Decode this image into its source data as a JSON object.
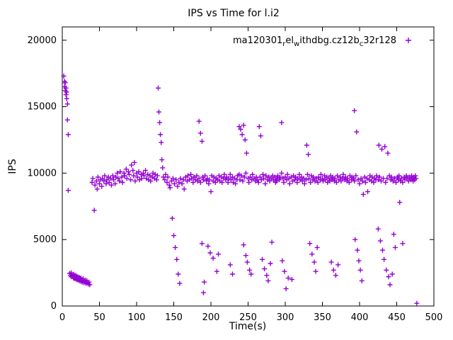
{
  "chart_data": {
    "type": "scatter",
    "title": "IPS vs Time for l.i2",
    "xlabel": "Time(s)",
    "ylabel": "IPS",
    "xlim": [
      0,
      500
    ],
    "ylim": [
      0,
      21000
    ],
    "xticks": [
      0,
      50,
      100,
      150,
      200,
      250,
      300,
      350,
      400,
      450,
      500
    ],
    "yticks": [
      0,
      5000,
      10000,
      15000,
      20000
    ],
    "grid": false,
    "legend_position": "top-right-inside",
    "legend_label": "ma120301relwithdbg.cz12bc32r128",
    "legend_segments": [
      {
        "t": "ma120301",
        "sub": false
      },
      {
        "t": "r",
        "sub": true
      },
      {
        "t": "el",
        "sub": false
      },
      {
        "t": "w",
        "sub": true
      },
      {
        "t": "ithdbg.cz12b",
        "sub": false
      },
      {
        "t": "c",
        "sub": true
      },
      {
        "t": "32r128",
        "sub": false
      }
    ],
    "marker": "plus",
    "color": "#9400d3",
    "points": [
      [
        2,
        17300
      ],
      [
        3,
        16900
      ],
      [
        3,
        16500
      ],
      [
        4,
        16200
      ],
      [
        4,
        16800
      ],
      [
        5,
        15900
      ],
      [
        5,
        16400
      ],
      [
        6,
        15600
      ],
      [
        6,
        16100
      ],
      [
        7,
        15200
      ],
      [
        7,
        14000
      ],
      [
        8,
        12900
      ],
      [
        8,
        8700
      ],
      [
        10,
        2450
      ],
      [
        11,
        2300
      ],
      [
        12,
        2500
      ],
      [
        12,
        2200
      ],
      [
        13,
        2350
      ],
      [
        14,
        2250
      ],
      [
        15,
        2400
      ],
      [
        15,
        2100
      ],
      [
        16,
        2200
      ],
      [
        17,
        2300
      ],
      [
        17,
        2050
      ],
      [
        18,
        2150
      ],
      [
        19,
        2250
      ],
      [
        19,
        2000
      ],
      [
        20,
        2100
      ],
      [
        21,
        2200
      ],
      [
        21,
        1950
      ],
      [
        22,
        2050
      ],
      [
        23,
        2150
      ],
      [
        23,
        1900
      ],
      [
        24,
        2000
      ],
      [
        25,
        2100
      ],
      [
        25,
        1850
      ],
      [
        26,
        1950
      ],
      [
        27,
        1800
      ],
      [
        28,
        2050
      ],
      [
        28,
        1900
      ],
      [
        29,
        1750
      ],
      [
        30,
        1850
      ],
      [
        31,
        1950
      ],
      [
        31,
        1800
      ],
      [
        32,
        1700
      ],
      [
        33,
        1900
      ],
      [
        34,
        1750
      ],
      [
        35,
        1650
      ],
      [
        36,
        1800
      ],
      [
        37,
        1600
      ],
      [
        40,
        9300
      ],
      [
        41,
        9600
      ],
      [
        43,
        7200
      ],
      [
        44,
        9100
      ],
      [
        46,
        9400
      ],
      [
        47,
        8800
      ],
      [
        48,
        9700
      ],
      [
        50,
        9200
      ],
      [
        51,
        9500
      ],
      [
        53,
        9000
      ],
      [
        54,
        9600
      ],
      [
        56,
        9400
      ],
      [
        57,
        9800
      ],
      [
        59,
        9200
      ],
      [
        60,
        9500
      ],
      [
        62,
        9700
      ],
      [
        63,
        9300
      ],
      [
        65,
        9600
      ],
      [
        66,
        9100
      ],
      [
        68,
        9800
      ],
      [
        69,
        9500
      ],
      [
        71,
        9200
      ],
      [
        72,
        9700
      ],
      [
        74,
        10000
      ],
      [
        75,
        9600
      ],
      [
        77,
        9400
      ],
      [
        78,
        10100
      ],
      [
        80,
        9700
      ],
      [
        81,
        9300
      ],
      [
        83,
        10000
      ],
      [
        84,
        9800
      ],
      [
        86,
        10300
      ],
      [
        87,
        9600
      ],
      [
        89,
        10100
      ],
      [
        90,
        9900
      ],
      [
        92,
        9500
      ],
      [
        93,
        10600
      ],
      [
        95,
        10200
      ],
      [
        96,
        9800
      ],
      [
        97,
        10800
      ],
      [
        98,
        9400
      ],
      [
        100,
        10000
      ],
      [
        101,
        9700
      ],
      [
        103,
        10100
      ],
      [
        104,
        9500
      ],
      [
        106,
        9900
      ],
      [
        107,
        9600
      ],
      [
        109,
        10000
      ],
      [
        110,
        9800
      ],
      [
        112,
        10200
      ],
      [
        113,
        9600
      ],
      [
        115,
        9900
      ],
      [
        116,
        9500
      ],
      [
        118,
        9800
      ],
      [
        119,
        9400
      ],
      [
        121,
        9700
      ],
      [
        122,
        10000
      ],
      [
        124,
        9600
      ],
      [
        125,
        9900
      ],
      [
        127,
        9500
      ],
      [
        128,
        9800
      ],
      [
        129,
        16400
      ],
      [
        130,
        14600
      ],
      [
        131,
        13800
      ],
      [
        132,
        12900
      ],
      [
        133,
        12300
      ],
      [
        134,
        11000
      ],
      [
        135,
        10400
      ],
      [
        136,
        9700
      ],
      [
        138,
        9500
      ],
      [
        139,
        9900
      ],
      [
        141,
        9300
      ],
      [
        142,
        9700
      ],
      [
        144,
        9100
      ],
      [
        145,
        8900
      ],
      [
        148,
        6600
      ],
      [
        150,
        5300
      ],
      [
        152,
        4400
      ],
      [
        154,
        3500
      ],
      [
        156,
        2400
      ],
      [
        158,
        1700
      ],
      [
        147,
        9400
      ],
      [
        149,
        9600
      ],
      [
        151,
        9200
      ],
      [
        153,
        9500
      ],
      [
        155,
        9000
      ],
      [
        157,
        9300
      ],
      [
        159,
        9600
      ],
      [
        161,
        9200
      ],
      [
        163,
        9500
      ],
      [
        164,
        8800
      ],
      [
        166,
        9700
      ],
      [
        168,
        9400
      ],
      [
        169,
        9800
      ],
      [
        171,
        9500
      ],
      [
        173,
        9900
      ],
      [
        174,
        9600
      ],
      [
        176,
        9300
      ],
      [
        177,
        9700
      ],
      [
        179,
        9500
      ],
      [
        181,
        9800
      ],
      [
        182,
        9400
      ],
      [
        184,
        13900
      ],
      [
        186,
        13000
      ],
      [
        188,
        12400
      ],
      [
        188,
        4700
      ],
      [
        190,
        1000
      ],
      [
        191,
        1800
      ],
      [
        184,
        9600
      ],
      [
        186,
        9300
      ],
      [
        189,
        9700
      ],
      [
        190,
        9500
      ],
      [
        192,
        9800
      ],
      [
        194,
        9400
      ],
      [
        195,
        9600
      ],
      [
        197,
        9200
      ],
      [
        198,
        9500
      ],
      [
        200,
        8600
      ],
      [
        201,
        9800
      ],
      [
        203,
        9400
      ],
      [
        204,
        9700
      ],
      [
        206,
        9300
      ],
      [
        207,
        9600
      ],
      [
        209,
        9500
      ],
      [
        211,
        9800
      ],
      [
        212,
        9400
      ],
      [
        196,
        4500
      ],
      [
        199,
        4000
      ],
      [
        203,
        3600
      ],
      [
        208,
        2600
      ],
      [
        210,
        3900
      ],
      [
        214,
        9700
      ],
      [
        215,
        9300
      ],
      [
        217,
        9600
      ],
      [
        218,
        9900
      ],
      [
        220,
        9500
      ],
      [
        221,
        9700
      ],
      [
        223,
        9300
      ],
      [
        224,
        9600
      ],
      [
        226,
        9900
      ],
      [
        227,
        9500
      ],
      [
        229,
        9700
      ],
      [
        230,
        9300
      ],
      [
        232,
        9600
      ],
      [
        233,
        9200
      ],
      [
        235,
        9500
      ],
      [
        236,
        9800
      ],
      [
        226,
        3100
      ],
      [
        229,
        2400
      ],
      [
        238,
        13500
      ],
      [
        240,
        13300
      ],
      [
        242,
        12900
      ],
      [
        244,
        13600
      ],
      [
        246,
        12500
      ],
      [
        248,
        11500
      ],
      [
        244,
        4600
      ],
      [
        247,
        3800
      ],
      [
        249,
        3300
      ],
      [
        252,
        2700
      ],
      [
        254,
        2400
      ],
      [
        238,
        9900
      ],
      [
        239,
        9500
      ],
      [
        241,
        9800
      ],
      [
        243,
        9400
      ],
      [
        245,
        9700
      ],
      [
        247,
        10000
      ],
      [
        250,
        9600
      ],
      [
        251,
        9300
      ],
      [
        253,
        9700
      ],
      [
        255,
        9500
      ],
      [
        256,
        9900
      ],
      [
        258,
        9600
      ],
      [
        260,
        9400
      ],
      [
        261,
        9700
      ],
      [
        263,
        9500
      ],
      [
        265,
        13500
      ],
      [
        267,
        12800
      ],
      [
        269,
        3500
      ],
      [
        272,
        2800
      ],
      [
        275,
        2300
      ],
      [
        277,
        1900
      ],
      [
        280,
        3200
      ],
      [
        282,
        4800
      ],
      [
        264,
        9300
      ],
      [
        266,
        9700
      ],
      [
        268,
        9500
      ],
      [
        270,
        9900
      ],
      [
        271,
        9600
      ],
      [
        273,
        9200
      ],
      [
        274,
        9800
      ],
      [
        276,
        9500
      ],
      [
        278,
        9700
      ],
      [
        279,
        9400
      ],
      [
        281,
        9600
      ],
      [
        283,
        9800
      ],
      [
        284,
        9500
      ],
      [
        286,
        9700
      ],
      [
        287,
        9300
      ],
      [
        289,
        9600
      ],
      [
        288,
        9400
      ],
      [
        290,
        9800
      ],
      [
        292,
        9500
      ],
      [
        293,
        9700
      ],
      [
        295,
        13800
      ],
      [
        296,
        3400
      ],
      [
        299,
        2600
      ],
      [
        301,
        1300
      ],
      [
        304,
        2100
      ],
      [
        309,
        2000
      ],
      [
        295,
        10000
      ],
      [
        297,
        9600
      ],
      [
        298,
        9300
      ],
      [
        300,
        9700
      ],
      [
        302,
        9500
      ],
      [
        303,
        9900
      ],
      [
        305,
        9600
      ],
      [
        306,
        9200
      ],
      [
        308,
        9700
      ],
      [
        310,
        9400
      ],
      [
        311,
        9800
      ],
      [
        313,
        9500
      ],
      [
        314,
        9700
      ],
      [
        316,
        9300
      ],
      [
        317,
        9600
      ],
      [
        319,
        9900
      ],
      [
        320,
        9500
      ],
      [
        322,
        9700
      ],
      [
        323,
        9400
      ],
      [
        325,
        9600
      ],
      [
        326,
        9200
      ],
      [
        328,
        9500
      ],
      [
        329,
        12100
      ],
      [
        331,
        11400
      ],
      [
        333,
        4700
      ],
      [
        336,
        3900
      ],
      [
        339,
        3300
      ],
      [
        341,
        2600
      ],
      [
        343,
        4400
      ],
      [
        330,
        9900
      ],
      [
        332,
        9600
      ],
      [
        334,
        9300
      ],
      [
        335,
        9800
      ],
      [
        337,
        9500
      ],
      [
        338,
        9700
      ],
      [
        340,
        9400
      ],
      [
        342,
        9600
      ],
      [
        344,
        9300
      ],
      [
        345,
        9700
      ],
      [
        347,
        9500
      ],
      [
        348,
        9900
      ],
      [
        350,
        9600
      ],
      [
        351,
        9400
      ],
      [
        353,
        9800
      ],
      [
        354,
        9500
      ],
      [
        356,
        9700
      ],
      [
        357,
        9300
      ],
      [
        359,
        9600
      ],
      [
        360,
        9400
      ],
      [
        362,
        3300
      ],
      [
        365,
        2700
      ],
      [
        368,
        2300
      ],
      [
        371,
        3100
      ],
      [
        361,
        9800
      ],
      [
        363,
        9500
      ],
      [
        364,
        9700
      ],
      [
        366,
        9400
      ],
      [
        367,
        9600
      ],
      [
        369,
        9300
      ],
      [
        370,
        9800
      ],
      [
        372,
        9500
      ],
      [
        374,
        9700
      ],
      [
        375,
        9400
      ],
      [
        377,
        9600
      ],
      [
        378,
        9900
      ],
      [
        380,
        9500
      ],
      [
        381,
        9700
      ],
      [
        383,
        9400
      ],
      [
        384,
        9600
      ],
      [
        386,
        9300
      ],
      [
        387,
        9800
      ],
      [
        389,
        9500
      ],
      [
        390,
        9700
      ],
      [
        393,
        14700
      ],
      [
        396,
        13100
      ],
      [
        394,
        5000
      ],
      [
        397,
        4200
      ],
      [
        399,
        3400
      ],
      [
        401,
        2700
      ],
      [
        403,
        1900
      ],
      [
        392,
        9600
      ],
      [
        393,
        9400
      ],
      [
        395,
        9800
      ],
      [
        398,
        9500
      ],
      [
        400,
        9200
      ],
      [
        402,
        9600
      ],
      [
        404,
        9400
      ],
      [
        405,
        8400
      ],
      [
        407,
        9700
      ],
      [
        408,
        9300
      ],
      [
        410,
        9600
      ],
      [
        411,
        8600
      ],
      [
        413,
        9500
      ],
      [
        414,
        9800
      ],
      [
        416,
        9400
      ],
      [
        417,
        9700
      ],
      [
        419,
        9300
      ],
      [
        420,
        9600
      ],
      [
        422,
        9500
      ],
      [
        426,
        12100
      ],
      [
        430,
        11800
      ],
      [
        434,
        12000
      ],
      [
        438,
        11500
      ],
      [
        425,
        5800
      ],
      [
        428,
        4900
      ],
      [
        431,
        4200
      ],
      [
        433,
        3500
      ],
      [
        436,
        2700
      ],
      [
        439,
        2200
      ],
      [
        441,
        1600
      ],
      [
        444,
        2400
      ],
      [
        446,
        5400
      ],
      [
        448,
        4400
      ],
      [
        423,
        9800
      ],
      [
        425,
        9500
      ],
      [
        427,
        9700
      ],
      [
        429,
        9400
      ],
      [
        432,
        9600
      ],
      [
        435,
        9300
      ],
      [
        437,
        9600
      ],
      [
        440,
        9800
      ],
      [
        442,
        9500
      ],
      [
        443,
        9700
      ],
      [
        445,
        9400
      ],
      [
        447,
        9600
      ],
      [
        449,
        9300
      ],
      [
        451,
        9700
      ],
      [
        452,
        9500
      ],
      [
        454,
        7800
      ],
      [
        458,
        4700
      ],
      [
        453,
        9800
      ],
      [
        455,
        9400
      ],
      [
        456,
        9600
      ],
      [
        458,
        9300
      ],
      [
        460,
        9700
      ],
      [
        461,
        9500
      ],
      [
        463,
        9800
      ],
      [
        464,
        9600
      ],
      [
        466,
        9400
      ],
      [
        467,
        9700
      ],
      [
        469,
        9500
      ],
      [
        470,
        9800
      ],
      [
        471,
        9600
      ],
      [
        472,
        9400
      ],
      [
        473,
        9700
      ],
      [
        474,
        9500
      ],
      [
        475,
        9800
      ],
      [
        476,
        9600
      ],
      [
        477,
        200
      ]
    ]
  }
}
